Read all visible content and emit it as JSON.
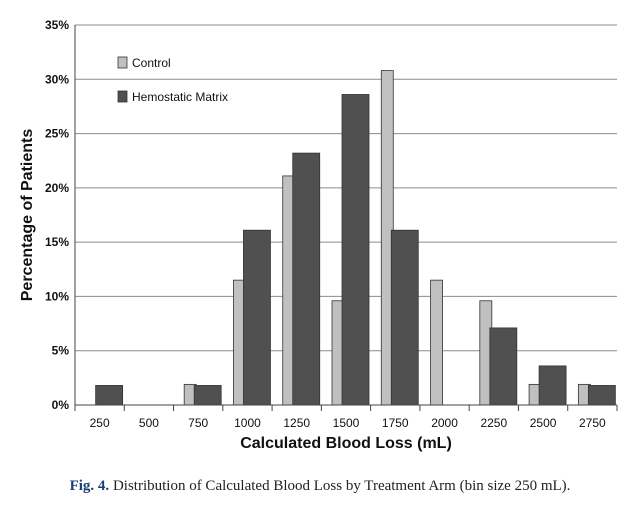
{
  "chart_data": {
    "type": "bar",
    "categories": [
      "250",
      "500",
      "750",
      "1000",
      "1250",
      "1500",
      "1750",
      "2000",
      "2250",
      "2500",
      "2750"
    ],
    "series": [
      {
        "name": "Control",
        "values": [
          0,
          0,
          1.9,
          11.5,
          21.1,
          9.6,
          30.8,
          11.5,
          9.6,
          1.9,
          1.9
        ],
        "color": "#c0c0c0"
      },
      {
        "name": "Hemostatic Matrix",
        "values": [
          1.8,
          0,
          1.8,
          16.1,
          23.2,
          28.6,
          16.1,
          0,
          7.1,
          3.6,
          1.8
        ],
        "color": "#505050"
      }
    ],
    "xlabel": "Calculated Blood Loss (mL)",
    "ylabel": "Percentage of Patients",
    "ylim": [
      0,
      35
    ],
    "yticks": [
      "0%",
      "5%",
      "10%",
      "15%",
      "20%",
      "25%",
      "30%",
      "35%"
    ],
    "grid": true,
    "legend_position": "top-left"
  },
  "caption": {
    "label": "Fig. 4.",
    "text": "Distribution of Calculated Blood Loss by Treatment Arm (bin size 250 mL)."
  }
}
